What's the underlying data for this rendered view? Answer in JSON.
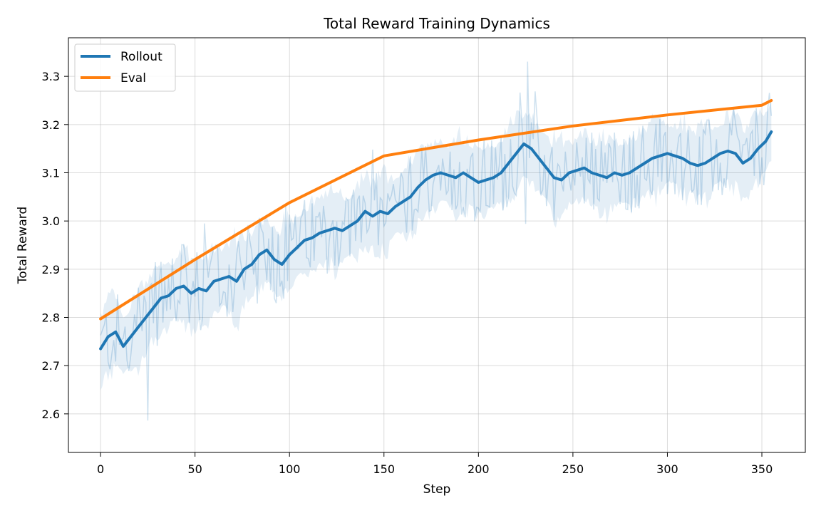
{
  "chart_data": {
    "type": "line",
    "title": "Total Reward Training Dynamics",
    "xlabel": "Step",
    "ylabel": "Total Reward",
    "xlim": [
      -17,
      373
    ],
    "ylim": [
      2.52,
      3.38
    ],
    "xticks": [
      0,
      50,
      100,
      150,
      200,
      250,
      300,
      350
    ],
    "yticks": [
      2.6,
      2.7,
      2.8,
      2.9,
      3.0,
      3.1,
      3.2,
      3.3
    ],
    "ytick_labels": [
      "2.6",
      "2.7",
      "2.8",
      "2.9",
      "3.0",
      "3.1",
      "3.2",
      "3.3"
    ],
    "grid": true,
    "legend_position": "top-left",
    "series": [
      {
        "name": "Rollout",
        "color": "#1f77b4",
        "x": [
          0,
          4,
          8,
          12,
          16,
          20,
          24,
          28,
          32,
          36,
          40,
          44,
          48,
          52,
          56,
          60,
          64,
          68,
          72,
          76,
          80,
          84,
          88,
          92,
          96,
          100,
          104,
          108,
          112,
          116,
          120,
          124,
          128,
          132,
          136,
          140,
          144,
          148,
          152,
          156,
          160,
          164,
          168,
          172,
          176,
          180,
          184,
          188,
          192,
          196,
          200,
          204,
          208,
          212,
          216,
          220,
          224,
          228,
          232,
          236,
          240,
          244,
          248,
          252,
          256,
          260,
          264,
          268,
          272,
          276,
          280,
          284,
          288,
          292,
          296,
          300,
          304,
          308,
          312,
          316,
          320,
          324,
          328,
          332,
          336,
          340,
          344,
          348,
          352,
          355
        ],
        "values": [
          2.735,
          2.76,
          2.77,
          2.74,
          2.76,
          2.78,
          2.8,
          2.82,
          2.84,
          2.845,
          2.86,
          2.865,
          2.85,
          2.86,
          2.855,
          2.875,
          2.88,
          2.885,
          2.875,
          2.9,
          2.91,
          2.93,
          2.94,
          2.92,
          2.91,
          2.93,
          2.945,
          2.96,
          2.965,
          2.975,
          2.98,
          2.985,
          2.98,
          2.99,
          3.0,
          3.02,
          3.01,
          3.02,
          3.015,
          3.03,
          3.04,
          3.05,
          3.07,
          3.085,
          3.095,
          3.1,
          3.095,
          3.09,
          3.1,
          3.09,
          3.08,
          3.085,
          3.09,
          3.1,
          3.12,
          3.14,
          3.16,
          3.15,
          3.13,
          3.11,
          3.09,
          3.085,
          3.1,
          3.105,
          3.11,
          3.1,
          3.095,
          3.09,
          3.1,
          3.095,
          3.1,
          3.11,
          3.12,
          3.13,
          3.135,
          3.14,
          3.135,
          3.13,
          3.12,
          3.115,
          3.12,
          3.13,
          3.14,
          3.145,
          3.14,
          3.12,
          3.13,
          3.15,
          3.165,
          3.185
        ]
      },
      {
        "name": "Eval",
        "color": "#ff7f0e",
        "x": [
          0,
          50,
          100,
          150,
          200,
          250,
          300,
          350,
          355
        ],
        "values": [
          2.797,
          2.92,
          3.038,
          3.135,
          3.168,
          3.197,
          3.22,
          3.24,
          3.25
        ]
      }
    ],
    "band_color": "#1f77b4"
  }
}
